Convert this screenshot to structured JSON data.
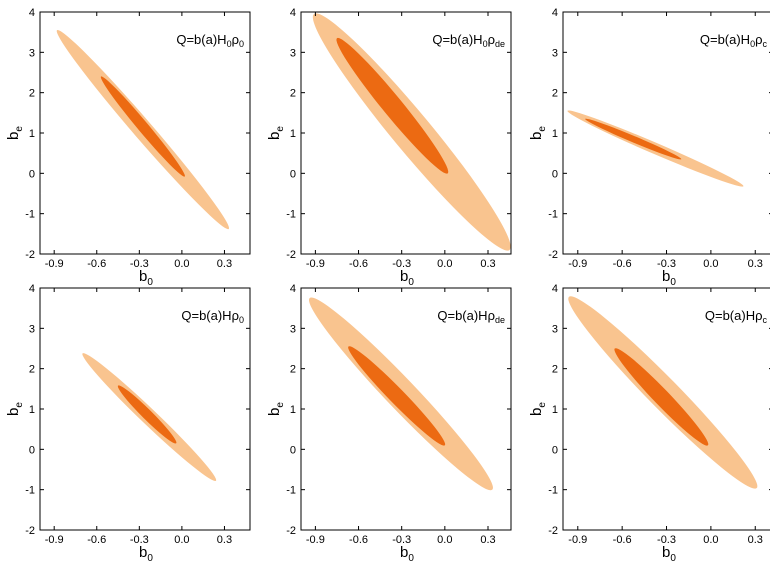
{
  "figure": {
    "panel_count": 6,
    "x_axis_label": {
      "base": "b",
      "sub": "0"
    },
    "y_axis_label": {
      "base": "b",
      "sub": "e"
    },
    "contour_colors": {
      "outer_2sigma": "#f9c48f",
      "inner_1sigma": "#ec6a12"
    }
  },
  "chart_data": [
    {
      "type": "contour",
      "annotation": {
        "pre": "Q=b(a)H",
        "mid": "0",
        "rho": "ρ",
        "sub": "0"
      },
      "x_ticks": [
        "-0.9",
        "-0.6",
        "-0.3",
        "0.0",
        "0.3"
      ],
      "y_ticks": [
        "-2",
        "-1",
        "0",
        "1",
        "2",
        "3",
        "4"
      ],
      "xlim": [
        -1.0,
        0.48
      ],
      "ylim": [
        -2,
        4
      ],
      "grid": false,
      "outer": {
        "from": [
          -0.88,
          3.55
        ],
        "to": [
          0.33,
          -1.38
        ],
        "width": 0.15
      },
      "inner": {
        "from": [
          -0.57,
          2.4
        ],
        "to": [
          0.02,
          -0.08
        ],
        "width": 0.07
      }
    },
    {
      "type": "contour",
      "annotation": {
        "pre": "Q=b(a)H",
        "mid": "0",
        "rho": "ρ",
        "sub": "de"
      },
      "x_ticks": [
        "-0.9",
        "-0.6",
        "-0.3",
        "0.0",
        "0.3"
      ],
      "y_ticks": [
        "-2",
        "-1",
        "0",
        "1",
        "2",
        "3",
        "4"
      ],
      "xlim": [
        -1.0,
        0.46
      ],
      "ylim": [
        -2,
        4
      ],
      "grid": false,
      "outer": {
        "from": [
          -0.91,
          3.95
        ],
        "to": [
          0.45,
          -1.9
        ],
        "width": 0.32
      },
      "inner": {
        "from": [
          -0.75,
          3.35
        ],
        "to": [
          0.02,
          0.0
        ],
        "width": 0.15
      }
    },
    {
      "type": "contour",
      "annotation": {
        "pre": "Q=b(a)H",
        "mid": "0",
        "rho": "ρ",
        "sub": "c"
      },
      "x_ticks": [
        "-0.9",
        "-0.6",
        "-0.3",
        "0.0",
        "0.3"
      ],
      "y_ticks": [
        "-2",
        "-1",
        "0",
        "1",
        "2",
        "3",
        "4"
      ],
      "xlim": [
        -1.0,
        0.42
      ],
      "ylim": [
        -2,
        4
      ],
      "grid": false,
      "outer": {
        "from": [
          -0.97,
          1.55
        ],
        "to": [
          0.22,
          -0.32
        ],
        "width": 0.14
      },
      "inner": {
        "from": [
          -0.85,
          1.35
        ],
        "to": [
          -0.2,
          0.35
        ],
        "width": 0.06
      }
    },
    {
      "type": "contour",
      "annotation": {
        "pre": "Q=b(a)H",
        "mid": "",
        "rho": "ρ",
        "sub": "0"
      },
      "x_ticks": [
        "-0.9",
        "-0.6",
        "-0.3",
        "0.0",
        "0.3"
      ],
      "y_ticks": [
        "-2",
        "-1",
        "0",
        "1",
        "2",
        "3",
        "4"
      ],
      "xlim": [
        -1.0,
        0.48
      ],
      "ylim": [
        -2,
        4
      ],
      "grid": false,
      "outer": {
        "from": [
          -0.7,
          2.38
        ],
        "to": [
          0.24,
          -0.78
        ],
        "width": 0.13
      },
      "inner": {
        "from": [
          -0.45,
          1.58
        ],
        "to": [
          -0.04,
          0.15
        ],
        "width": 0.07
      }
    },
    {
      "type": "contour",
      "annotation": {
        "pre": "Q=b(a)H",
        "mid": "",
        "rho": "ρ",
        "sub": "de"
      },
      "x_ticks": [
        "-0.9",
        "-0.6",
        "-0.3",
        "0.0",
        "0.3"
      ],
      "y_ticks": [
        "-2",
        "-1",
        "0",
        "1",
        "2",
        "3",
        "4"
      ],
      "xlim": [
        -1.0,
        0.46
      ],
      "ylim": [
        -2,
        4
      ],
      "grid": false,
      "outer": {
        "from": [
          -0.94,
          3.75
        ],
        "to": [
          0.33,
          -1.0
        ],
        "width": 0.26
      },
      "inner": {
        "from": [
          -0.67,
          2.55
        ],
        "to": [
          0.0,
          0.1
        ],
        "width": 0.12
      }
    },
    {
      "type": "contour",
      "annotation": {
        "pre": "Q=b(a)H",
        "mid": "",
        "rho": "ρ",
        "sub": "c"
      },
      "x_ticks": [
        "-0.9",
        "-0.6",
        "-0.3",
        "0.0",
        "0.3"
      ],
      "y_ticks": [
        "-2",
        "-1",
        "0",
        "1",
        "2",
        "3",
        "4"
      ],
      "xlim": [
        -1.0,
        0.42
      ],
      "ylim": [
        -2,
        4
      ],
      "grid": false,
      "outer": {
        "from": [
          -0.96,
          3.78
        ],
        "to": [
          0.31,
          -0.96
        ],
        "width": 0.26
      },
      "inner": {
        "from": [
          -0.65,
          2.5
        ],
        "to": [
          -0.02,
          0.1
        ],
        "width": 0.12
      }
    }
  ]
}
